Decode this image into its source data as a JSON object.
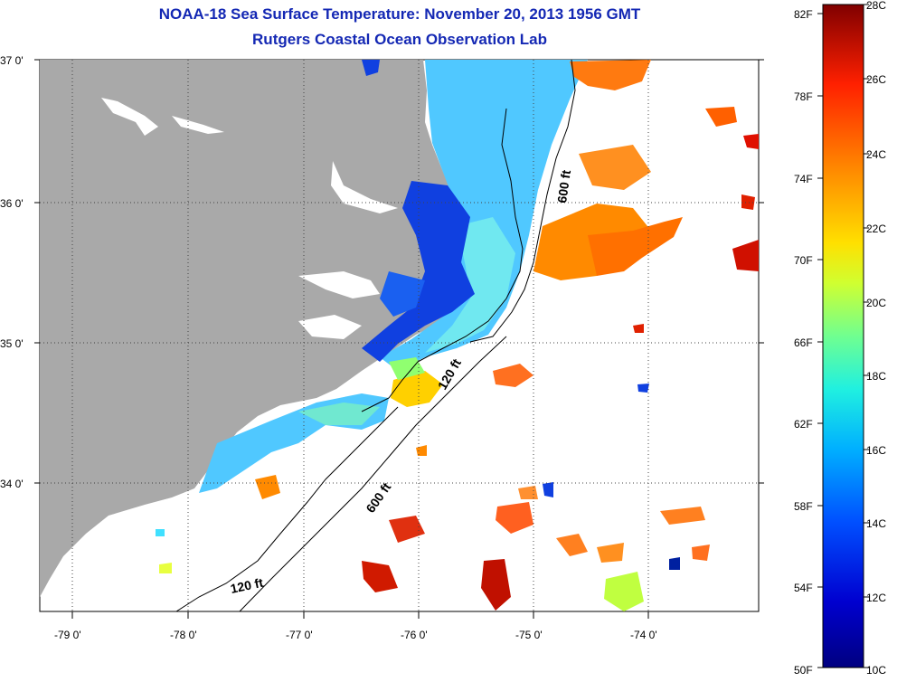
{
  "title": {
    "line1": "NOAA-18 Sea Surface Temperature:  November 20, 2013 1956 GMT",
    "line2": "Rutgers Coastal Ocean Observation Lab"
  },
  "axes": {
    "lat_labels": [
      "37 0'",
      "36 0'",
      "35 0'",
      "34 0'"
    ],
    "lon_labels": [
      "-79 0'",
      "-78 0'",
      "-77 0'",
      "-76 0'",
      "-75 0'",
      "-74 0'"
    ]
  },
  "contours": {
    "labels": [
      "600 ft",
      "120 ft",
      "600 ft",
      "120 ft"
    ]
  },
  "colorbar": {
    "fahrenheit_labels": [
      "82F",
      "78F",
      "74F",
      "70F",
      "66F",
      "62F",
      "58F",
      "54F",
      "50F"
    ],
    "celsius_labels": [
      "28C",
      "26C",
      "24C",
      "22C",
      "20C",
      "18C",
      "16C",
      "14C",
      "12C",
      "10C"
    ]
  },
  "colors": {
    "title": "#1428b4",
    "land": "#a9a9a9",
    "water_blank": "#ffffff",
    "scale": [
      "#800000",
      "#e01000",
      "#ff7000",
      "#ffd000",
      "#c0ff40",
      "#40ffc0",
      "#00c0ff",
      "#0050ff",
      "#0000c0",
      "#000080"
    ]
  }
}
